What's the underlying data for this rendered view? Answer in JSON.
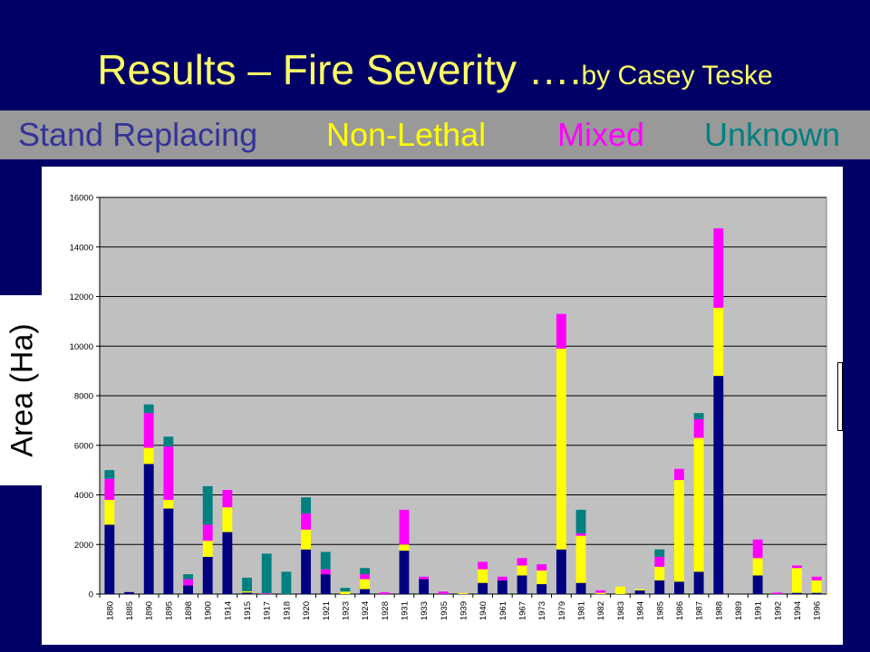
{
  "title": {
    "main": "Results – Fire Severity ….",
    "by": "by Casey Teske"
  },
  "legend": [
    {
      "label": "Stand Replacing",
      "color": "#333399"
    },
    {
      "label": "Non-Lethal",
      "color": "#ffff00"
    },
    {
      "label": "Mixed",
      "color": "#ff00ff"
    },
    {
      "label": "Unknown",
      "color": "#008080"
    }
  ],
  "chart_data": {
    "type": "bar",
    "stacked": true,
    "ylabel": "Area (Ha)",
    "xlabel": "",
    "ylim": [
      0,
      16000
    ],
    "yticks": [
      0,
      2000,
      4000,
      6000,
      8000,
      10000,
      12000,
      14000,
      16000
    ],
    "grid": true,
    "categories": [
      "1880",
      "1885",
      "1890",
      "1895",
      "1898",
      "1900",
      "1914",
      "1915",
      "1917",
      "1918",
      "1920",
      "1921",
      "1923",
      "1924",
      "1928",
      "1931",
      "1933",
      "1935",
      "1939",
      "1940",
      "1961",
      "1967",
      "1973",
      "1979",
      "1981",
      "1982",
      "1983",
      "1984",
      "1985",
      "1986",
      "1987",
      "1988",
      "1989",
      "1991",
      "1992",
      "1994",
      "1996"
    ],
    "series": [
      {
        "color": "#000080",
        "values": [
          2800,
          80,
          5250,
          3450,
          350,
          1500,
          2500,
          60,
          0,
          0,
          1800,
          800,
          0,
          200,
          0,
          1750,
          600,
          0,
          0,
          450,
          550,
          750,
          400,
          1800,
          450,
          0,
          0,
          150,
          550,
          500,
          900,
          8800,
          0,
          750,
          0,
          50,
          50
        ]
      },
      {
        "color": "#ffff00",
        "values": [
          1000,
          0,
          650,
          350,
          0,
          650,
          1000,
          50,
          0,
          0,
          800,
          0,
          100,
          400,
          0,
          250,
          0,
          0,
          40,
          550,
          0,
          400,
          550,
          8100,
          1900,
          50,
          300,
          50,
          550,
          4100,
          5400,
          2750,
          0,
          700,
          0,
          1000,
          500
        ]
      },
      {
        "color": "#ff00ff",
        "values": [
          850,
          0,
          1400,
          2150,
          250,
          650,
          700,
          0,
          30,
          0,
          650,
          200,
          0,
          200,
          70,
          1400,
          100,
          100,
          0,
          300,
          150,
          300,
          250,
          1400,
          100,
          100,
          0,
          0,
          400,
          450,
          750,
          3200,
          0,
          750,
          60,
          100,
          150
        ]
      },
      {
        "color": "#008080",
        "values": [
          350,
          0,
          350,
          400,
          200,
          1550,
          0,
          550,
          1600,
          900,
          650,
          700,
          150,
          250,
          0,
          0,
          0,
          0,
          0,
          0,
          0,
          0,
          0,
          0,
          950,
          0,
          0,
          0,
          300,
          0,
          250,
          0,
          0,
          0,
          0,
          0,
          0
        ]
      }
    ]
  }
}
